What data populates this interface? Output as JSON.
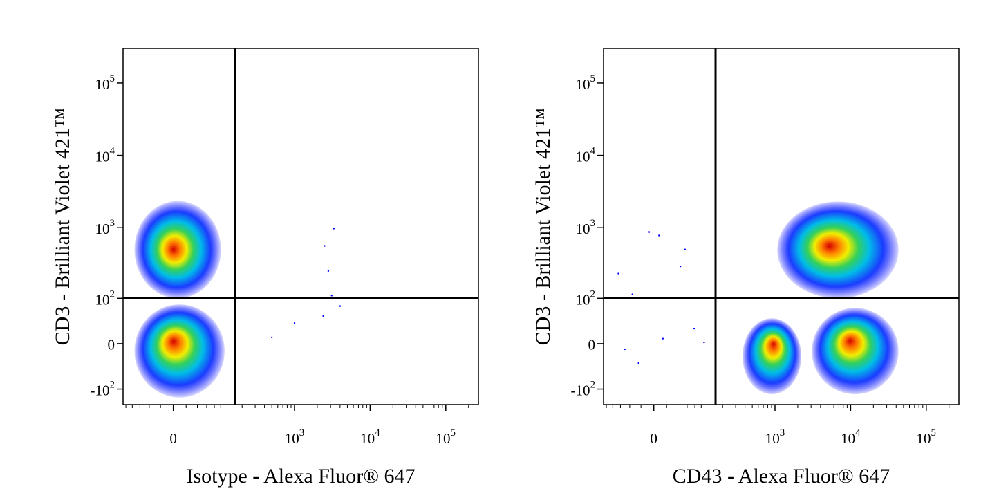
{
  "chart_data": [
    {
      "type": "scatter",
      "scale": "biexponential",
      "xlabel": "Isotype - Alexa Fluor® 647",
      "ylabel": "CD3 - Brilliant Violet 421™",
      "xlim": [
        -110,
        270000
      ],
      "ylim": [
        -170,
        300000
      ],
      "xticks": [
        0,
        {
          "value": 1000,
          "label": "10",
          "exponent": "3"
        },
        {
          "value": 10000,
          "label": "10",
          "exponent": "4"
        },
        {
          "value": 100000,
          "label": "10",
          "exponent": "5"
        }
      ],
      "yticks": [
        {
          "value": -100,
          "label": "-10",
          "exponent": "2"
        },
        0,
        {
          "value": 100,
          "label": "10",
          "exponent": "2"
        },
        {
          "value": 1000,
          "label": "10",
          "exponent": "3"
        },
        {
          "value": 10000,
          "label": "10",
          "exponent": "4"
        },
        {
          "value": 100000,
          "label": "10",
          "exponent": "5"
        }
      ],
      "xminor": [
        -100,
        -80,
        -60,
        -40,
        -20,
        20,
        40,
        60,
        80,
        100,
        200,
        300,
        400,
        500,
        600,
        700,
        800,
        900,
        2000,
        3000,
        4000,
        5000,
        6000,
        7000,
        8000,
        9000,
        20000,
        30000,
        40000,
        50000,
        60000,
        70000,
        80000,
        90000,
        200000
      ],
      "gate": {
        "x": 160,
        "y": 100
      },
      "populations": [
        {
          "x": 0,
          "y": 500,
          "xrange": [
            -74,
            101
          ],
          "yrange": [
            100,
            2340
          ]
        },
        {
          "x": 0,
          "y": 4,
          "xrange": [
            -74,
            114
          ],
          "yrange": [
            -134,
            80
          ]
        }
      ],
      "events": [
        [
          3300,
          970
        ],
        [
          2500,
          560
        ],
        [
          2800,
          250
        ],
        [
          3100,
          110
        ],
        [
          2400,
          50
        ],
        [
          1000,
          35
        ],
        [
          500,
          10
        ],
        [
          4000,
          75
        ]
      ]
    },
    {
      "type": "scatter",
      "scale": "biexponential",
      "xlabel": "CD43 - Alexa Fluor® 647",
      "ylabel": "CD3 - Brilliant Violet 421™",
      "xlim": [
        -110,
        270000
      ],
      "ylim": [
        -170,
        300000
      ],
      "xticks": [
        0,
        {
          "value": 1000,
          "label": "10",
          "exponent": "3"
        },
        {
          "value": 10000,
          "label": "10",
          "exponent": "4"
        },
        {
          "value": 100000,
          "label": "10",
          "exponent": "5"
        }
      ],
      "yticks": [
        {
          "value": -100,
          "label": "-10",
          "exponent": "2"
        },
        0,
        {
          "value": 100,
          "label": "10",
          "exponent": "2"
        },
        {
          "value": 1000,
          "label": "10",
          "exponent": "3"
        },
        {
          "value": 10000,
          "label": "10",
          "exponent": "4"
        },
        {
          "value": 100000,
          "label": "10",
          "exponent": "5"
        }
      ],
      "xminor": [
        -100,
        -80,
        -60,
        -40,
        -20,
        20,
        40,
        60,
        80,
        100,
        200,
        300,
        400,
        500,
        600,
        700,
        800,
        900,
        2000,
        3000,
        4000,
        5000,
        6000,
        7000,
        8000,
        9000,
        20000,
        30000,
        40000,
        50000,
        60000,
        70000,
        80000,
        90000,
        200000
      ],
      "gate": {
        "x": 160,
        "y": 100
      },
      "populations": [
        {
          "x": 5200,
          "y": 560,
          "xrange": [
            1070,
            43000
          ],
          "yrange": [
            100,
            2300
          ]
        },
        {
          "x": 960,
          "y": 0,
          "xrange": [
            370,
            2230
          ],
          "yrange": [
            -120,
            45
          ]
        },
        {
          "x": 9800,
          "y": 5,
          "xrange": [
            3060,
            43000
          ],
          "yrange": [
            -120,
            70
          ]
        }
      ],
      "events": [
        [
          -65,
          230
        ],
        [
          -35,
          115
        ],
        [
          -7,
          870
        ],
        [
          8,
          780
        ],
        [
          55,
          500
        ],
        [
          45,
          290
        ],
        [
          -50,
          -9
        ],
        [
          -24,
          -33
        ],
        [
          14,
          8
        ],
        [
          78,
          25
        ],
        [
          110,
          2
        ]
      ]
    }
  ]
}
